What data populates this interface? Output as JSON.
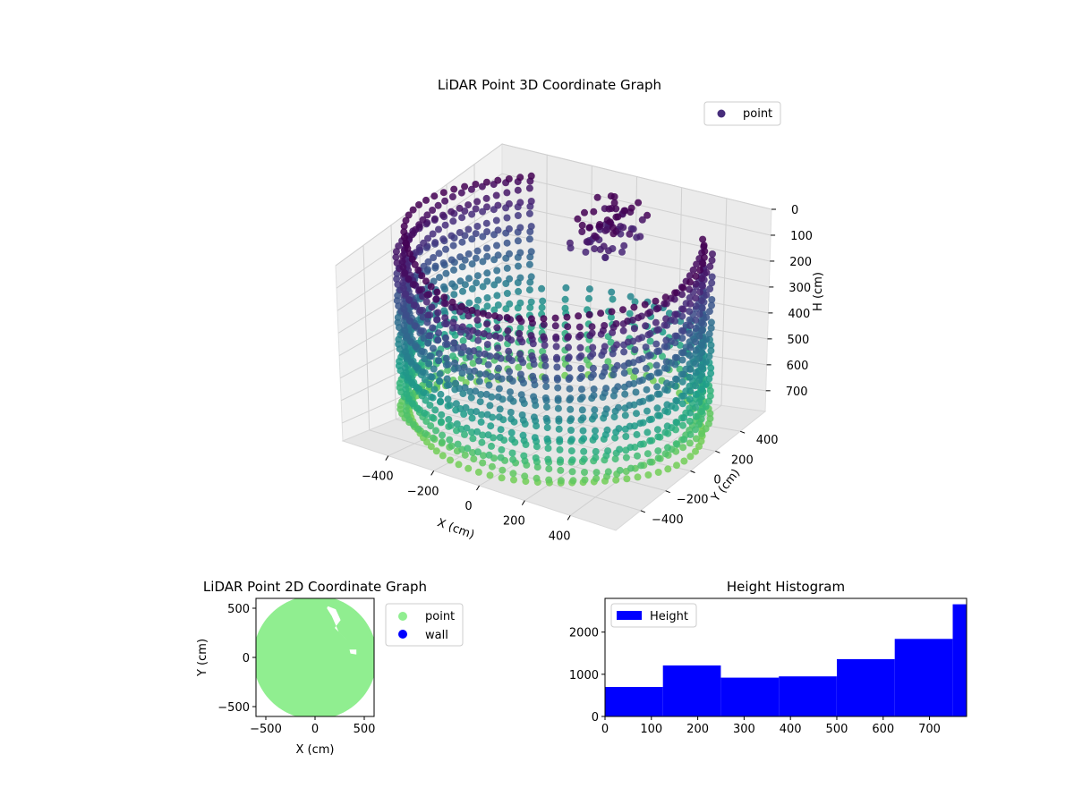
{
  "chart_data": [
    {
      "type": "scatter",
      "projection": "3d",
      "title": "LiDAR Point 3D Coordinate Graph",
      "xlabel": "X (cm)",
      "ylabel": "Y (cm)",
      "zlabel": "H (cm)",
      "xlim": [
        -600,
        600
      ],
      "ylim": [
        -600,
        600
      ],
      "zlim": [
        0,
        780
      ],
      "z_inverted": true,
      "xticks": [
        "−400",
        "−200",
        "0",
        "200",
        "400"
      ],
      "yticks": [
        "−400",
        "−200",
        "0",
        "200",
        "400"
      ],
      "zticks": [
        "0",
        "100",
        "200",
        "300",
        "400",
        "500",
        "600",
        "700"
      ],
      "legend": {
        "position": "top-right",
        "entries": [
          "point"
        ]
      },
      "colormap": "viridis",
      "description_of_data": "Points on a cylindrical wall of radius ~600 cm (open toward positive Y), H from 0 to ~720 cm, plus an inner structure near the top",
      "wall_radius": 600,
      "wall_height_range": [
        0,
        720
      ],
      "gap_angle_range_deg": [
        35,
        130
      ]
    },
    {
      "type": "scatter",
      "title": "LiDAR Point 2D Coordinate Graph",
      "xlabel": "X (cm)",
      "ylabel": "Y (cm)",
      "xlim": [
        -600,
        600
      ],
      "ylim": [
        -600,
        600
      ],
      "xticks": [
        "−500",
        "0",
        "500"
      ],
      "yticks": [
        "−500",
        "0",
        "500"
      ],
      "legend": {
        "position": "outside-right",
        "entries": [
          "point",
          "wall"
        ]
      },
      "series": [
        {
          "name": "point",
          "color": "#90ee90"
        },
        {
          "name": "wall",
          "color": "#0000ff"
        }
      ]
    },
    {
      "type": "bar",
      "title": "Height Histogram",
      "xlabel": "",
      "ylabel": "",
      "xlim": [
        0,
        780
      ],
      "ylim": [
        0,
        2800
      ],
      "xticks": [
        "0",
        "100",
        "200",
        "300",
        "400",
        "500",
        "600",
        "700"
      ],
      "yticks": [
        "0",
        "1000",
        "2000"
      ],
      "legend": {
        "position": "top-left",
        "entries": [
          "Height"
        ]
      },
      "bin_edges": [
        0,
        125,
        250,
        375,
        500,
        625,
        750,
        780
      ],
      "values": [
        700,
        1210,
        920,
        950,
        1360,
        1840,
        2660
      ],
      "color": "#0000ff"
    }
  ],
  "colors": {
    "point_2d": "#90ee90",
    "wall_2d": "#0000ff",
    "hist": "#0000ff"
  }
}
